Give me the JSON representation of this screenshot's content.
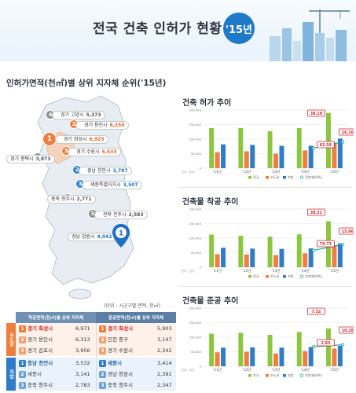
{
  "header": {
    "title": "전국 건축 인허가 현황",
    "year": "'15년"
  },
  "map": {
    "title": "인허가면적(천㎡)별 상위 지자체 순위('15년)",
    "unit_note": "(단위 : 시군구별 면적, 천㎡)",
    "pins": [
      {
        "num": "4",
        "label": "경기 고양시",
        "value": "5,373",
        "tone": "g"
      },
      {
        "num": "2",
        "label": "경기 용인시",
        "value": "6,250",
        "tone": "o"
      },
      {
        "num": "1",
        "label": "경기 화성시",
        "value": "6,925",
        "tone": "o"
      },
      {
        "num": "3",
        "label": "경기 수원시",
        "value": "5,533",
        "tone": "o"
      },
      {
        "num": "5",
        "label": "경기 평택시",
        "value": "3,873",
        "tone": "g"
      },
      {
        "num": "2",
        "label": "충남 천안시",
        "value": "3,787",
        "tone": "b"
      },
      {
        "num": "3",
        "label": "세종특별자치시",
        "value": "3,507",
        "tone": "b"
      },
      {
        "num": "4",
        "label": "충북 청주시",
        "value": "2,771",
        "tone": "g"
      },
      {
        "num": "5",
        "label": "전북 전주시",
        "value": "2,583",
        "tone": "g"
      },
      {
        "num": "",
        "label": "경남 창원시",
        "value": "4,042",
        "tone": "b"
      },
      {
        "num": "1",
        "label": "",
        "value": "",
        "tone": "b"
      }
    ]
  },
  "ranking": {
    "col1": "착공면적(천㎡)별 상위 지자체",
    "col2": "준공면적(천㎡)별 상위 지자체",
    "side_capital": "수도권",
    "side_local": "지방",
    "capital": [
      {
        "rank": "1",
        "a_name": "경기 화성시",
        "a_val": "6,971",
        "b_name": "경기 화성시",
        "b_val": "5,903"
      },
      {
        "rank": "2",
        "a_name": "경기 용인시",
        "a_val": "6,313",
        "b_name": "인천 중구",
        "b_val": "3,147"
      },
      {
        "rank": "3",
        "a_name": "경기 김포시",
        "a_val": "3,956",
        "b_name": "경기 수원시",
        "b_val": "2,342"
      }
    ],
    "local": [
      {
        "rank": "1",
        "a_name": "충남 천안시",
        "a_val": "3,532",
        "b_name": "세종시",
        "b_val": "3,414"
      },
      {
        "rank": "2",
        "a_name": "세종시",
        "a_val": "3,141",
        "b_name": "경남 창원시",
        "b_val": "2,391"
      },
      {
        "rank": "3",
        "a_name": "충북 청주시",
        "a_val": "2,783",
        "b_name": "충북 청주시",
        "b_val": "2,347"
      }
    ]
  },
  "colors": {
    "nation": "#8cc63f",
    "capital": "#f07e3c",
    "local": "#2f7cc8",
    "line": "#1aa9a4",
    "callout": "#d5242e"
  },
  "chart_data": [
    {
      "type": "bar",
      "title": "건축 허가 추이",
      "categories": [
        "'11년",
        "'12년",
        "'13년",
        "'14년",
        "'15년"
      ],
      "ylim": [
        0,
        200000
      ],
      "yticks": [
        "0",
        "50,000",
        "100,000",
        "150,000",
        "200,000"
      ],
      "series": [
        {
          "name": "전국",
          "values": [
            138000,
            138000,
            127000,
            138000,
            190000
          ]
        },
        {
          "name": "수도권",
          "values": [
            55000,
            58000,
            50000,
            61000,
            88000
          ]
        },
        {
          "name": "지방",
          "values": [
            82000,
            80000,
            77000,
            77000,
            102000
          ]
        }
      ],
      "line": {
        "name": "전년대비(%)",
        "values": [
          null,
          null,
          null,
          69000,
          90000
        ]
      },
      "callouts": [
        "38.19",
        "26.16",
        "62.59"
      ],
      "axis_note": "(단위 : 천㎡)",
      "legend": [
        "전국",
        "수도권",
        "지방",
        "전년대비(%)"
      ]
    },
    {
      "type": "bar",
      "title": "건축물 착공 추이",
      "categories": [
        "'11년",
        "'12년",
        "'13년",
        "'14년",
        "'15년"
      ],
      "ylim": [
        0,
        200000
      ],
      "yticks": [
        "0",
        "50,000",
        "100,000",
        "150,000",
        "200,000"
      ],
      "series": [
        {
          "name": "전국",
          "values": [
            112000,
            108000,
            105000,
            113000,
            158000
          ]
        },
        {
          "name": "수도권",
          "values": [
            45000,
            44000,
            42000,
            48000,
            76000
          ]
        },
        {
          "name": "지방",
          "values": [
            67000,
            64000,
            63000,
            65000,
            82000
          ]
        }
      ],
      "line": {
        "name": "전년대비(%)",
        "values": [
          null,
          null,
          null,
          58000,
          78000
        ]
      },
      "callouts": [
        "38.31",
        "15.66",
        "74.73"
      ],
      "axis_note": "(단위 : 천㎡)",
      "legend": [
        "전국",
        "수도권",
        "지방",
        "전년대비(%)"
      ]
    },
    {
      "type": "bar",
      "title": "건축물 준공 추이",
      "categories": [
        "'11년",
        "'12년",
        "'13년",
        "'14년",
        "'15년"
      ],
      "ylim": [
        0,
        200000
      ],
      "yticks": [
        "0",
        "50,000",
        "100,000",
        "150,000",
        "200,000"
      ],
      "series": [
        {
          "name": "전국",
          "values": [
            112000,
            115000,
            108000,
            118000,
            130000
          ]
        },
        {
          "name": "수도권",
          "values": [
            48000,
            50000,
            44000,
            52000,
            61000
          ]
        },
        {
          "name": "지방",
          "values": [
            64000,
            65000,
            64000,
            66000,
            70000
          ]
        }
      ],
      "line": {
        "name": "전년대비(%)",
        "values": [
          null,
          null,
          null,
          67000,
          74000
        ]
      },
      "callouts": [
        "7.32",
        "10.28",
        "2.83"
      ],
      "axis_note": "(단위 : 천㎡)",
      "legend": [
        "전국",
        "수도권",
        "지방",
        "전년대비(%)"
      ]
    }
  ]
}
